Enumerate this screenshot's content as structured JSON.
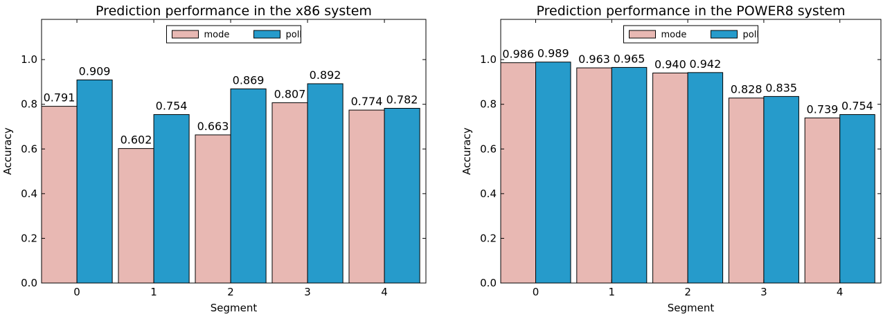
{
  "chart_data": [
    {
      "type": "bar",
      "title": "Prediction performance in the x86 system",
      "xlabel": "Segment",
      "ylabel": "Accuracy",
      "categories": [
        "0",
        "1",
        "2",
        "3",
        "4"
      ],
      "yticks": [
        "0.0",
        "0.2",
        "0.4",
        "0.6",
        "0.8",
        "1.0"
      ],
      "ylim": [
        0,
        1.18
      ],
      "grid": false,
      "legend_position": "top-center",
      "series": [
        {
          "name": "mode",
          "color": "#e8b8b3",
          "values": [
            0.791,
            0.602,
            0.663,
            0.807,
            0.774
          ],
          "labels": [
            "0.791",
            "0.602",
            "0.663",
            "0.807",
            "0.774"
          ]
        },
        {
          "name": "poll",
          "color": "#269bcb",
          "values": [
            0.909,
            0.754,
            0.869,
            0.892,
            0.782
          ],
          "labels": [
            "0.909",
            "0.754",
            "0.869",
            "0.892",
            "0.782"
          ]
        }
      ]
    },
    {
      "type": "bar",
      "title": "Prediction performance in the POWER8 system",
      "xlabel": "Segment",
      "ylabel": "Accuracy",
      "categories": [
        "0",
        "1",
        "2",
        "3",
        "4"
      ],
      "yticks": [
        "0.0",
        "0.2",
        "0.4",
        "0.6",
        "0.8",
        "1.0"
      ],
      "ylim": [
        0,
        1.18
      ],
      "grid": false,
      "legend_position": "top-center",
      "series": [
        {
          "name": "mode",
          "color": "#e8b8b3",
          "values": [
            0.986,
            0.963,
            0.94,
            0.828,
            0.739
          ],
          "labels": [
            "0.986",
            "0.963",
            "0.940",
            "0.828",
            "0.739"
          ]
        },
        {
          "name": "poll",
          "color": "#269bcb",
          "values": [
            0.989,
            0.965,
            0.942,
            0.835,
            0.754
          ],
          "labels": [
            "0.989",
            "0.965",
            "0.942",
            "0.835",
            "0.754"
          ]
        }
      ]
    }
  ]
}
